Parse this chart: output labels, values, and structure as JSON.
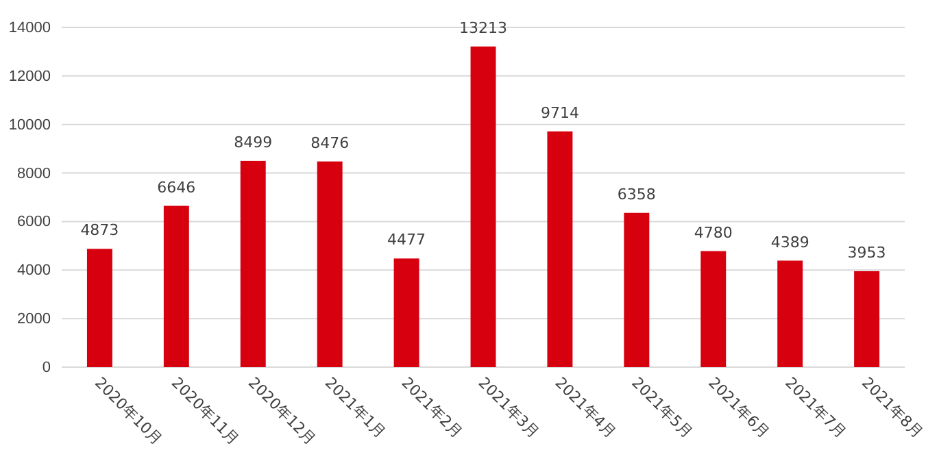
{
  "chart_data": {
    "type": "bar",
    "categories": [
      "2020年10月",
      "2020年11月",
      "2020年12月",
      "2021年1月",
      "2021年2月",
      "2021年3月",
      "2021年4月",
      "2021年5月",
      "2021年6月",
      "2021年7月",
      "2021年8月"
    ],
    "values": [
      4873,
      6646,
      8499,
      8476,
      4477,
      13213,
      9714,
      6358,
      4780,
      4389,
      3953
    ],
    "color": "#d7000f",
    "ylim": [
      0,
      14000
    ],
    "yticks": [
      0,
      2000,
      4000,
      6000,
      8000,
      10000,
      12000,
      14000
    ],
    "grid": "y",
    "data_labels": true
  }
}
